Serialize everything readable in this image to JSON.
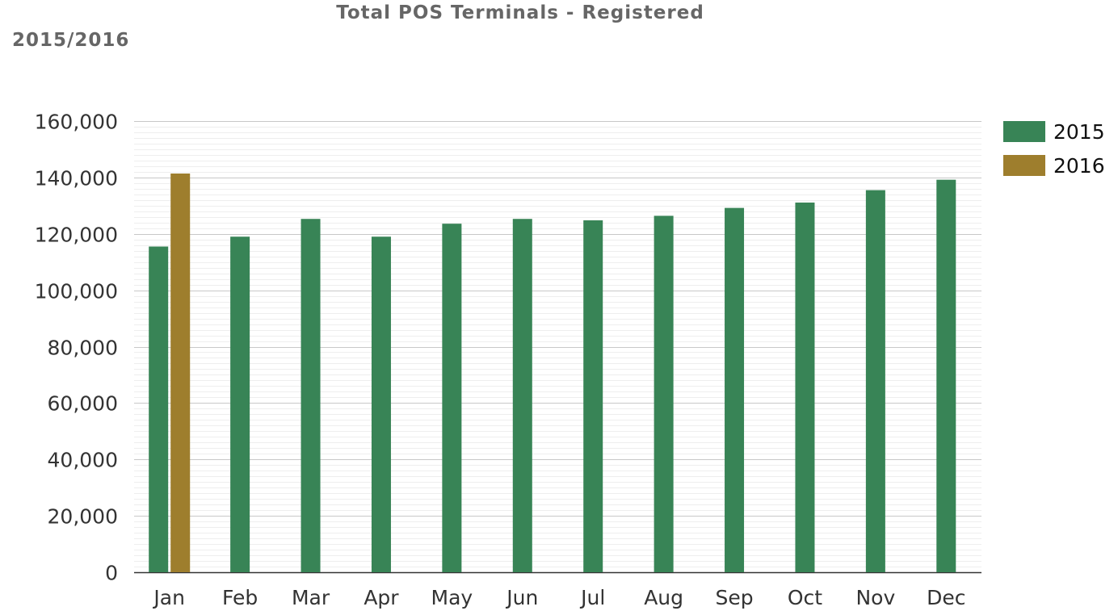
{
  "chart_data": {
    "type": "bar",
    "title": "Total POS Terminals - Registered",
    "subtitle": "2015/2016",
    "xlabel": "",
    "ylabel": "",
    "categories": [
      "Jan",
      "Feb",
      "Mar",
      "Apr",
      "May",
      "Jun",
      "Jul",
      "Aug",
      "Sep",
      "Oct",
      "Nov",
      "Dec"
    ],
    "series": [
      {
        "name": "2015",
        "color": "#388456",
        "values": [
          115500,
          119000,
          125300,
          119000,
          123600,
          125300,
          124800,
          126400,
          129200,
          131100,
          135500,
          139200
        ]
      },
      {
        "name": "2016",
        "color": "#9E7E2D",
        "values": [
          141400,
          null,
          null,
          null,
          null,
          null,
          null,
          null,
          null,
          null,
          null,
          null
        ]
      }
    ],
    "ylim": [
      0,
      160000
    ],
    "yticks": [
      0,
      20000,
      40000,
      60000,
      80000,
      100000,
      120000,
      140000,
      160000
    ],
    "ytick_labels": [
      "0",
      "20,000",
      "40,000",
      "60,000",
      "80,000",
      "100,000",
      "120,000",
      "140,000",
      "160,000"
    ],
    "grid": true,
    "minor_grid": true,
    "legend_position": "top-right"
  }
}
